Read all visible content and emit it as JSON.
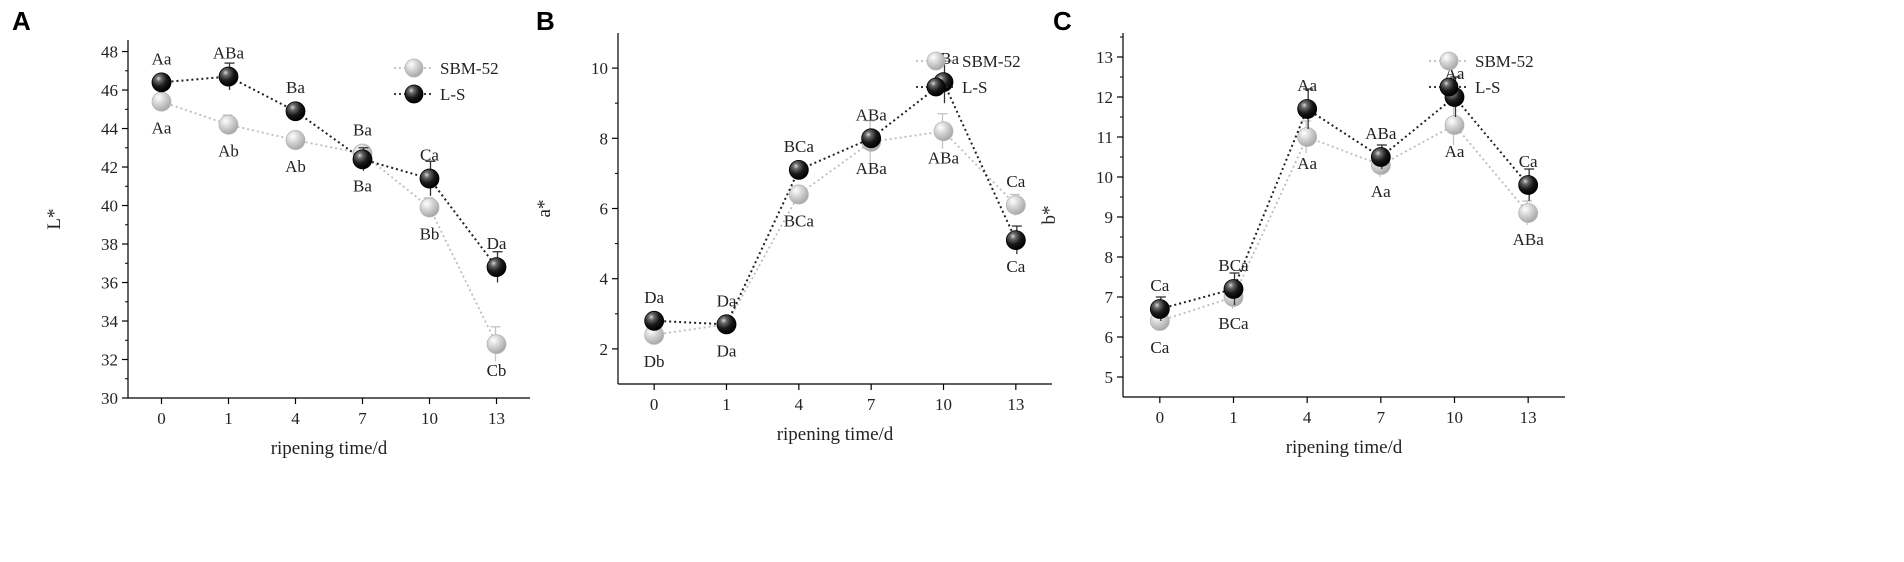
{
  "figure": {
    "panels": [
      "A",
      "B",
      "C"
    ],
    "legend": [
      "SBM-52",
      "L-S"
    ],
    "colors": {
      "SBM-52": "#c8c8c8",
      "L-S": "#111111",
      "axis": "#000000"
    }
  },
  "chart_data": [
    {
      "panel": "A",
      "type": "line",
      "categories": [
        "0",
        "1",
        "4",
        "7",
        "10",
        "13"
      ],
      "xlabel": "ripening time/d",
      "ylabel": "L*",
      "ylim": [
        30,
        48.6
      ],
      "yticks": [
        30,
        32,
        34,
        36,
        38,
        40,
        42,
        44,
        46,
        48
      ],
      "legend_position": "top-right",
      "series": [
        {
          "name": "SBM-52",
          "values": [
            45.4,
            44.2,
            43.4,
            42.7,
            39.9,
            32.8
          ],
          "errors": [
            0.3,
            0.5,
            0.2,
            0.4,
            0.5,
            0.9
          ],
          "labels": [
            "Aa",
            "Ab",
            "Ab",
            "Ba",
            "Bb",
            "Cb"
          ]
        },
        {
          "name": "L-S",
          "values": [
            46.4,
            46.7,
            44.9,
            42.4,
            41.4,
            36.8
          ],
          "errors": [
            0.2,
            0.7,
            0.2,
            0.6,
            0.9,
            0.8
          ],
          "labels": [
            "Aa",
            "ABa",
            "Ba",
            "Ba",
            "Ca",
            "Da"
          ]
        }
      ]
    },
    {
      "panel": "B",
      "type": "line",
      "categories": [
        "0",
        "1",
        "4",
        "7",
        "10",
        "13"
      ],
      "xlabel": "ripening time/d",
      "ylabel": "a*",
      "ylim": [
        1,
        11
      ],
      "yticks": [
        2,
        4,
        6,
        8,
        10
      ],
      "legend_position": "top-right",
      "series": [
        {
          "name": "SBM-52",
          "values": [
            2.4,
            2.7,
            6.4,
            7.9,
            8.2,
            6.1
          ],
          "errors": [
            0.1,
            0.1,
            0.2,
            0.6,
            0.5,
            0.3
          ],
          "labels": [
            "Db",
            "Da",
            "BCa",
            "ABa",
            "ABa",
            "Ca"
          ]
        },
        {
          "name": "L-S",
          "values": [
            2.8,
            2.7,
            7.1,
            8.0,
            9.6,
            5.1
          ],
          "errors": [
            0.1,
            0.1,
            0.1,
            0.2,
            0.6,
            0.4
          ],
          "labels": [
            "Da",
            "Da",
            "BCa",
            "ABa",
            "ABa",
            "Ca"
          ]
        }
      ]
    },
    {
      "panel": "C",
      "type": "line",
      "categories": [
        "0",
        "1",
        "4",
        "7",
        "10",
        "13"
      ],
      "xlabel": "ripening time/d",
      "ylabel": "b*",
      "ylim": [
        4.5,
        13.6
      ],
      "yticks": [
        5,
        6,
        7,
        8,
        9,
        10,
        11,
        12,
        13
      ],
      "legend_position": "top-right",
      "series": [
        {
          "name": "SBM-52",
          "values": [
            6.4,
            7.0,
            11.0,
            10.3,
            11.3,
            9.1
          ],
          "errors": [
            0.2,
            0.3,
            0.4,
            0.3,
            0.5,
            0.3
          ],
          "labels": [
            "Ca",
            "BCa",
            "Aa",
            "Aa",
            "Aa",
            "ABa"
          ]
        },
        {
          "name": "L-S",
          "values": [
            6.7,
            7.2,
            11.7,
            10.5,
            12.0,
            9.8
          ],
          "errors": [
            0.3,
            0.4,
            0.5,
            0.3,
            0.5,
            0.4
          ],
          "labels": [
            "Ca",
            "BCa",
            "Aa",
            "ABa",
            "Aa",
            "Ca"
          ]
        }
      ]
    }
  ]
}
